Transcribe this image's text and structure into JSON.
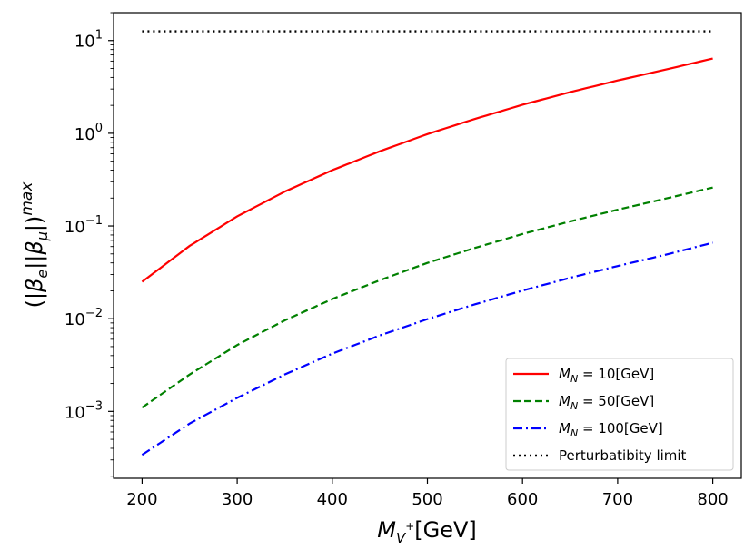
{
  "chart_data": {
    "type": "line",
    "title": "",
    "xlabel": {
      "main": "M",
      "sub": "V",
      "sup": "+",
      "unit": "[GeV]"
    },
    "ylabel": {
      "prefix": "(|",
      "beta": "β",
      "sub1": "e",
      "mid": "||",
      "sub2": "μ",
      "suffix": "|)",
      "sup": "max"
    },
    "xscale": "linear",
    "yscale": "log",
    "xlim": [
      170,
      830
    ],
    "ylim": [
      0.00019,
      20
    ],
    "xticks": [
      200,
      300,
      400,
      500,
      600,
      700,
      800
    ],
    "xtick_labels": [
      "200",
      "300",
      "400",
      "500",
      "600",
      "700",
      "800"
    ],
    "yticks": [
      0.001,
      0.01,
      0.1,
      1,
      10
    ],
    "ytick_labels": [
      {
        "base": "10",
        "exp": "−3"
      },
      {
        "base": "10",
        "exp": "−2"
      },
      {
        "base": "10",
        "exp": "−1"
      },
      {
        "base": "10",
        "exp": "0"
      },
      {
        "base": "10",
        "exp": "1"
      }
    ],
    "legend_position": "bottom-right",
    "grid": false,
    "series": [
      {
        "name": {
          "sym": "M",
          "sub": "N",
          "rest": " = 10[GeV]"
        },
        "color": "#ff0000",
        "style": "solid",
        "x": [
          200,
          250,
          300,
          350,
          400,
          450,
          500,
          550,
          600,
          650,
          700,
          750,
          800
        ],
        "y": [
          0.025,
          0.061,
          0.127,
          0.235,
          0.4,
          0.64,
          0.98,
          1.43,
          2.03,
          2.78,
          3.71,
          4.85,
          6.4
        ]
      },
      {
        "name": {
          "sym": "M",
          "sub": "N",
          "rest": " = 50[GeV]"
        },
        "color": "#008000",
        "style": "dashed",
        "x": [
          200,
          250,
          300,
          350,
          400,
          450,
          500,
          550,
          600,
          650,
          700,
          750,
          800
        ],
        "y": [
          0.0011,
          0.0025,
          0.0052,
          0.0096,
          0.0163,
          0.026,
          0.04,
          0.058,
          0.082,
          0.112,
          0.15,
          0.197,
          0.26
        ]
      },
      {
        "name": {
          "sym": "M",
          "sub": "N",
          "rest": " = 100[GeV]"
        },
        "color": "#0000ff",
        "style": "dashdot",
        "x": [
          200,
          250,
          300,
          350,
          400,
          450,
          500,
          550,
          600,
          650,
          700,
          750,
          800
        ],
        "y": [
          0.00034,
          0.00074,
          0.0014,
          0.0025,
          0.0042,
          0.0066,
          0.0099,
          0.0143,
          0.0201,
          0.0276,
          0.037,
          0.0488,
          0.066
        ]
      },
      {
        "name": {
          "sym": "",
          "sub": "",
          "rest": "Perturbatibity limit"
        },
        "color": "#000000",
        "style": "dotted",
        "x": [
          200,
          800
        ],
        "y": [
          12.57,
          12.57
        ]
      }
    ]
  }
}
